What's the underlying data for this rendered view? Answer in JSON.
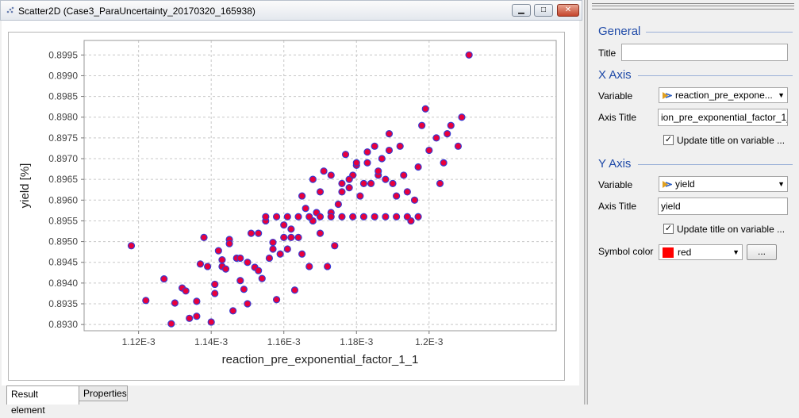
{
  "window": {
    "title": "Scatter2D  (Case3_ParaUncertainty_20170320_165938)",
    "minimize_glyph": "▁",
    "maximize_glyph": "□",
    "close_glyph": "✕"
  },
  "tabs": [
    {
      "label": "Result element",
      "active": true
    },
    {
      "label": "Properties",
      "active": false
    }
  ],
  "properties": {
    "general_heading": "General",
    "title_label": "Title",
    "title_value": "",
    "x_axis_heading": "X Axis",
    "x_variable_label": "Variable",
    "x_variable_value": "reaction_pre_expone...",
    "x_axis_title_label": "Axis Title",
    "x_axis_title_value": "ion_pre_exponential_factor_1_",
    "x_update_title_label": "Update title on variable ...",
    "x_update_title_checked": true,
    "y_axis_heading": "Y Axis",
    "y_variable_label": "Variable",
    "y_variable_value": "yield",
    "y_axis_title_label": "Axis Title",
    "y_axis_title_value": "yield",
    "y_update_title_label": "Update title on variable ...",
    "y_update_title_checked": true,
    "symbol_color_label": "Symbol color",
    "symbol_color_value": "red",
    "symbol_color_hex": "#ff0000",
    "ellipsis_button": "...",
    "check_glyph": "✓",
    "dropdown_glyph": "▼"
  },
  "chart_data": {
    "type": "scatter",
    "xlabel": "reaction_pre_exponential_factor_1_1",
    "ylabel": "yield [%]",
    "xlim": [
      0.001105,
      0.001235
    ],
    "ylim": [
      0.89285,
      0.89985
    ],
    "x_ticks": [
      0.00112,
      0.00114,
      0.00116,
      0.00118,
      0.0012
    ],
    "x_tick_labels": [
      "1.12E-3",
      "1.14E-3",
      "1.16E-3",
      "1.18E-3",
      "1.2E-3"
    ],
    "y_ticks": [
      0.893,
      0.8935,
      0.894,
      0.8945,
      0.895,
      0.8955,
      0.896,
      0.8965,
      0.897,
      0.8975,
      0.898,
      0.8985,
      0.899,
      0.8995
    ],
    "y_tick_labels": [
      "0.8930",
      "0.8935",
      "0.8940",
      "0.8945",
      "0.8950",
      "0.8955",
      "0.8960",
      "0.8965",
      "0.8970",
      "0.8975",
      "0.8980",
      "0.8985",
      "0.8990",
      "0.8995"
    ],
    "grid": true,
    "marker_fill": "#e8003c",
    "marker_edge": "#3a3ad0",
    "x": [
      0.001118,
      0.001122,
      0.001127,
      0.001129,
      0.00113,
      0.001132,
      0.001133,
      0.001134,
      0.001136,
      0.001137,
      0.001138,
      0.00114,
      0.001141,
      0.001142,
      0.001143,
      0.001144,
      0.001145,
      0.001147,
      0.001148,
      0.001149,
      0.00115,
      0.001152,
      0.001153,
      0.001154,
      0.001156,
      0.001157,
      0.001158,
      0.00116,
      0.001161,
      0.001162,
      0.001164,
      0.001165,
      0.001167,
      0.001168,
      0.001169,
      0.00117,
      0.001172,
      0.001173,
      0.001175,
      0.001176,
      0.001177,
      0.001178,
      0.001179,
      0.00118,
      0.001182,
      0.001183,
      0.001185,
      0.001186,
      0.001188,
      0.001189,
      0.001191,
      0.001193,
      0.001194,
      0.001195,
      0.001197,
      0.001199,
      0.0012,
      0.001202,
      0.001204,
      0.001206,
      0.001208,
      0.001211,
      0.001136,
      0.001139,
      0.001141,
      0.001143,
      0.001145,
      0.001146,
      0.001148,
      0.00115,
      0.001151,
      0.001153,
      0.001155,
      0.001157,
      0.001159,
      0.00116,
      0.001162,
      0.001163,
      0.001165,
      0.001166,
      0.001168,
      0.00117,
      0.001171,
      0.001173,
      0.001174,
      0.001176,
      0.001178,
      0.00118,
      0.001181,
      0.001183,
      0.001184,
      0.001186,
      0.001187,
      0.001189,
      0.00119,
      0.001192,
      0.001196,
      0.001198,
      0.001203,
      0.001205,
      0.001209,
      0.001155,
      0.001158,
      0.001161,
      0.001164,
      0.001167,
      0.00117,
      0.001173,
      0.001176,
      0.001179,
      0.001182,
      0.001185,
      0.001188,
      0.001191,
      0.001194,
      0.001197
    ],
    "y": [
      0.8949,
      0.89358,
      0.8941,
      0.89302,
      0.89352,
      0.89388,
      0.89381,
      0.89315,
      0.89356,
      0.89446,
      0.8951,
      0.89306,
      0.89375,
      0.89478,
      0.8944,
      0.89434,
      0.89505,
      0.8946,
      0.89406,
      0.89385,
      0.8945,
      0.89438,
      0.8952,
      0.89411,
      0.8946,
      0.89482,
      0.8936,
      0.8951,
      0.89482,
      0.8953,
      0.8951,
      0.8947,
      0.8944,
      0.8955,
      0.8957,
      0.8962,
      0.8944,
      0.8966,
      0.8959,
      0.8964,
      0.8971,
      0.8963,
      0.8966,
      0.89684,
      0.8964,
      0.8969,
      0.8973,
      0.8966,
      0.8965,
      0.8976,
      0.8961,
      0.8966,
      0.8962,
      0.8955,
      0.8968,
      0.8982,
      0.8972,
      0.8975,
      0.8969,
      0.8978,
      0.8973,
      0.8995,
      0.8932,
      0.8944,
      0.89397,
      0.89456,
      0.89495,
      0.89333,
      0.8946,
      0.8935,
      0.8952,
      0.8943,
      0.8955,
      0.89498,
      0.8947,
      0.8954,
      0.8951,
      0.89383,
      0.8961,
      0.8958,
      0.8965,
      0.8952,
      0.8967,
      0.8957,
      0.8949,
      0.8962,
      0.8965,
      0.8969,
      0.8961,
      0.89716,
      0.8964,
      0.8967,
      0.897,
      0.8972,
      0.8964,
      0.8973,
      0.896,
      0.8978,
      0.8964,
      0.8976,
      0.898,
      0.8956,
      0.8956,
      0.8956,
      0.8956,
      0.8956,
      0.8956,
      0.8956,
      0.8956,
      0.8956,
      0.8956,
      0.8956,
      0.8956,
      0.8956,
      0.8956,
      0.8956
    ]
  }
}
